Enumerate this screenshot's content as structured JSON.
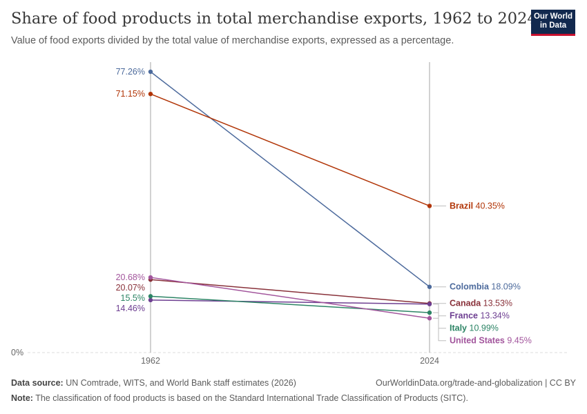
{
  "header": {
    "title": "Share of food products in total merchandise exports, 1962 to 2024",
    "subtitle": "Value of food exports divided by the total value of merchandise exports, expressed as a percentage."
  },
  "logo": {
    "line1": "Our World",
    "line2": "in Data"
  },
  "chart_data": {
    "type": "line",
    "x": [
      1962,
      2024
    ],
    "x_tick_labels": [
      "1962",
      "2024"
    ],
    "y_tick_labels": [
      "0%"
    ],
    "ylim": [
      0,
      80
    ],
    "series": [
      {
        "name": "Colombia",
        "values": [
          77.26,
          18.09
        ],
        "start_label": "77.26%",
        "end_label": "18.09%",
        "color": "#4c6a9c"
      },
      {
        "name": "Brazil",
        "values": [
          71.15,
          40.35
        ],
        "start_label": "71.15%",
        "end_label": "40.35%",
        "color": "#b13507"
      },
      {
        "name": "Canada",
        "values": [
          20.07,
          13.53
        ],
        "start_label": "20.07%",
        "end_label": "13.53%",
        "color": "#883039"
      },
      {
        "name": "France",
        "values": [
          14.46,
          13.34
        ],
        "start_label": "14.46%",
        "end_label": "13.34%",
        "color": "#6d3e91"
      },
      {
        "name": "Italy",
        "values": [
          15.5,
          10.99
        ],
        "start_label": "15.5%",
        "end_label": "10.99%",
        "color": "#2c8465"
      },
      {
        "name": "United States",
        "values": [
          20.68,
          9.45
        ],
        "start_label": "20.68%",
        "end_label": "9.45%",
        "color": "#a2559c"
      }
    ]
  },
  "footer": {
    "source_label": "Data source:",
    "source_text": "UN Comtrade, WITS, and World Bank staff estimates (2026)",
    "url": "OurWorldinData.org/trade-and-globalization | CC BY",
    "note_label": "Note:",
    "note_text": "The classification of food products is based on the Standard International Trade Classification of Products (SITC)."
  }
}
